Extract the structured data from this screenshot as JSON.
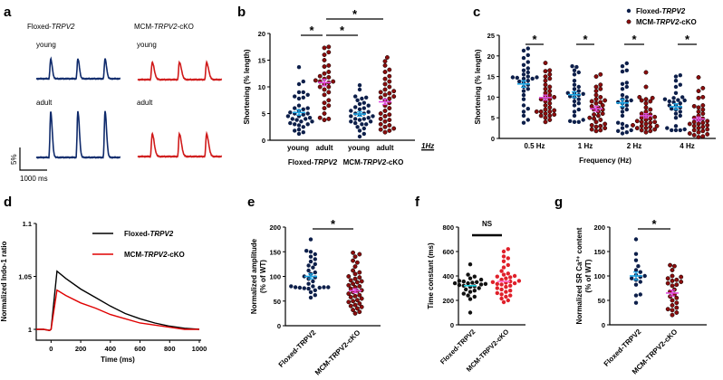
{
  "labels": {
    "floxed_prefix": "Floxed-",
    "gene": "TRPV2",
    "cko_prefix": "MCM-",
    "cko_suffix": "-cKO",
    "floxed_plain": "Floxed-TRPV2",
    "cko_plain": "MCM-TRPV2-cKO",
    "star": "*",
    "ns": "NS"
  },
  "colors": {
    "floxed_trace": "#0f2a6b",
    "cko_trace": "#d01a1a",
    "floxed_dot": "#0d1f4a",
    "cko_dot": "#8b0d0d",
    "floxed_mean": "#1fa8e6",
    "cko_mean": "#e24ce0",
    "f_floxed_dot": "#111111",
    "f_cko_dot": "#e0202a",
    "d_floxed": "#000000",
    "d_cko": "#e00000"
  },
  "panel_a": {
    "letter": "a",
    "young": "young",
    "adult": "adult",
    "scale_y": "5%",
    "scale_x": "1000 ms",
    "duration_ms": 3100,
    "beats_ms": [
      530,
      1530,
      2530
    ],
    "traces": [
      {
        "group": "floxed",
        "age": "young",
        "amplitude_percent": 4.4
      },
      {
        "group": "floxed",
        "age": "adult",
        "amplitude_percent": 10.2
      },
      {
        "group": "cko",
        "age": "young",
        "amplitude_percent": 3.8
      },
      {
        "group": "cko",
        "age": "adult",
        "amplitude_percent": 5.0
      }
    ]
  },
  "chart_data": [
    {
      "id": "b",
      "type": "scatter",
      "letter": "b",
      "ylabel": "Shortening (% length)",
      "ylim": [
        0,
        20
      ],
      "yticks": [
        0,
        5,
        10,
        15,
        20
      ],
      "frequency_label": "1Hz",
      "categories": [
        "young",
        "adult",
        "young",
        "adult"
      ],
      "group_labels": [
        "Floxed-TRPV2",
        "MCM-TRPV2-cKO"
      ],
      "series": [
        {
          "name": "Floxed-TRPV2 young",
          "mean": 5.2,
          "sem": 0.5,
          "values": [
            13.7,
            11,
            10.5,
            9,
            9,
            8.5,
            8.2,
            8,
            7.8,
            6.5,
            6,
            6,
            5.8,
            5.5,
            5.2,
            5,
            5,
            4.8,
            4.5,
            4.5,
            4.2,
            4,
            4,
            3.8,
            3.5,
            3.5,
            3.2,
            3,
            3,
            2.8,
            2.5,
            2,
            1.8,
            1.5,
            1.2
          ]
        },
        {
          "name": "Floxed-TRPV2 adult",
          "mean": 10.8,
          "sem": 0.6,
          "values": [
            17.5,
            17.3,
            16.5,
            16,
            15,
            14,
            13.8,
            12.8,
            12.5,
            12,
            11.8,
            11.5,
            11.2,
            11,
            11,
            10.8,
            10.5,
            10,
            10,
            9.5,
            9,
            8.5,
            7.5,
            7,
            6.5,
            6,
            5,
            4.2,
            4,
            3.8
          ]
        },
        {
          "name": "MCM-TRPV2-cKO young",
          "mean": 4.9,
          "sem": 0.4,
          "values": [
            10.3,
            9.5,
            8.2,
            8,
            7.8,
            7.5,
            7,
            6.8,
            6.5,
            6.2,
            6,
            5.8,
            5.5,
            5.3,
            5,
            5,
            4.8,
            4.5,
            4.5,
            4.2,
            4,
            4,
            3.8,
            3.5,
            3.5,
            3.2,
            3,
            3,
            2.5,
            2.2,
            1.8,
            1.2,
            0.7
          ]
        },
        {
          "name": "MCM-TRPV2-cKO adult",
          "mean": 7.2,
          "sem": 0.5,
          "values": [
            15.5,
            14.8,
            14,
            13.2,
            12.8,
            12,
            11.5,
            11,
            10.5,
            10,
            9.5,
            9.2,
            9,
            8.8,
            8.5,
            8.2,
            8,
            7.8,
            7.5,
            7,
            6.5,
            6,
            5.5,
            5,
            4.8,
            4.5,
            4,
            3.8,
            3.5,
            3,
            2.8,
            2.5,
            2.2,
            2,
            1.8,
            1.5
          ]
        }
      ],
      "significance": [
        {
          "pair": [
            0,
            1
          ],
          "label": "*"
        },
        {
          "pair": [
            1,
            2
          ],
          "label": "*"
        },
        {
          "pair": [
            1,
            3
          ],
          "label": "*"
        }
      ]
    },
    {
      "id": "c",
      "type": "scatter",
      "letter": "c",
      "ylabel": "Shortening  (% length)",
      "xlabel": "Frequency  (Hz)",
      "ylim": [
        0,
        25
      ],
      "yticks": [
        0,
        5,
        10,
        15,
        20,
        25
      ],
      "categories": [
        "0.5 Hz",
        "1 Hz",
        "2 Hz",
        "4 Hz"
      ],
      "legend": [
        "Floxed-TRPV2",
        "MCM-TRPV2-cKO"
      ],
      "legend_position": "top-right",
      "series": [
        {
          "name": "Floxed 0.5 Hz",
          "mean": 13.2,
          "sem": 0.8,
          "values": [
            21.8,
            21.3,
            20.2,
            19.5,
            18.5,
            17.8,
            17,
            16.5,
            16,
            15.5,
            15,
            14.8,
            14.8,
            14.7,
            14.5,
            14.5,
            14,
            13.8,
            13.5,
            13,
            12.5,
            12,
            11.5,
            10.5,
            9.5,
            8,
            7.2,
            6.5,
            5.5,
            4.5,
            3.8
          ]
        },
        {
          "name": "cKO 0.5 Hz",
          "mean": 9.9,
          "sem": 0.6,
          "values": [
            18.3,
            16.5,
            16.3,
            15.5,
            15,
            14.5,
            14,
            13,
            12.5,
            12,
            11.5,
            11,
            10.5,
            10,
            10,
            9.5,
            9.5,
            9,
            8.5,
            8,
            7.5,
            7,
            6.8,
            6.5,
            6.5,
            6.5,
            6,
            5.8,
            5.5,
            5.5,
            5,
            4.5,
            4
          ]
        },
        {
          "name": "Floxed 1 Hz",
          "mean": 10.6,
          "sem": 0.7,
          "values": [
            17.5,
            17.3,
            16.5,
            16,
            15.5,
            14,
            13,
            12.5,
            12,
            11.5,
            11,
            11,
            10.8,
            10.5,
            10.2,
            10,
            9.5,
            9,
            8.5,
            8,
            7,
            6.5,
            5.5,
            4.5,
            4.2,
            4,
            4
          ]
        },
        {
          "name": "cKO 1 Hz",
          "mean": 7.2,
          "sem": 0.6,
          "values": [
            15.5,
            15,
            13,
            12.5,
            12,
            11.5,
            10.5,
            10,
            9.5,
            9.2,
            9,
            8.8,
            8.5,
            8,
            7.8,
            7.5,
            7,
            7,
            6.5,
            6,
            5.8,
            5.5,
            5,
            4.8,
            4.5,
            4,
            3.5,
            3.2,
            3,
            2.8,
            2.5,
            2.2,
            2,
            1.8
          ]
        },
        {
          "name": "Floxed 2 Hz",
          "mean": 8.6,
          "sem": 0.9,
          "values": [
            18.2,
            17.5,
            16.5,
            16.2,
            13.5,
            13.2,
            12.5,
            12,
            10.5,
            10,
            9.5,
            9.2,
            9,
            8.8,
            8.5,
            8,
            7.5,
            7,
            6.5,
            5.5,
            3.8,
            3.5,
            3,
            2.5,
            2,
            1.8,
            1.5,
            1.2
          ]
        },
        {
          "name": "cKO 2 Hz",
          "mean": 5.5,
          "sem": 0.5,
          "values": [
            16,
            12.5,
            10,
            9.8,
            9.5,
            9.2,
            9,
            8.5,
            7.5,
            7,
            6.5,
            6,
            5.8,
            5.5,
            5.2,
            5,
            4.8,
            4.5,
            4.2,
            4,
            4,
            3.8,
            3.5,
            3.2,
            3,
            3,
            2.8,
            2.5,
            2.5,
            2.2,
            2,
            1.8,
            1.5
          ]
        },
        {
          "name": "Floxed 4 Hz",
          "mean": 7.7,
          "sem": 0.7,
          "values": [
            15.3,
            15,
            14,
            13,
            12.5,
            11,
            10,
            9.8,
            9.5,
            9.3,
            9.2,
            9,
            8.8,
            8.5,
            8,
            8,
            7.5,
            7.2,
            7,
            6.5,
            6,
            5.5,
            5,
            3,
            2.5,
            2.2,
            2,
            2,
            2
          ]
        },
        {
          "name": "cKO 4 Hz",
          "mean": 4.7,
          "sem": 0.5,
          "values": [
            14.8,
            12.2,
            11.5,
            10,
            9.8,
            8,
            7.8,
            7.5,
            7,
            6.5,
            6,
            5.5,
            5,
            4.8,
            4.5,
            4.2,
            4,
            3.8,
            3.5,
            3.5,
            3.2,
            3,
            2.8,
            2.5,
            2.2,
            2,
            1.8,
            1.5,
            1.2,
            1,
            0.8,
            0.5,
            0.3
          ]
        }
      ],
      "significance": [
        {
          "pair": [
            0,
            1
          ],
          "label": "*"
        },
        {
          "pair": [
            2,
            3
          ],
          "label": "*"
        },
        {
          "pair": [
            4,
            5
          ],
          "label": "*"
        },
        {
          "pair": [
            6,
            7
          ],
          "label": "*"
        }
      ]
    },
    {
      "id": "d",
      "type": "line",
      "letter": "d",
      "ylabel": "Normalized Indo-1 ratio",
      "xlabel": "Time (ms)",
      "xlim": [
        -100,
        1000
      ],
      "ylim": [
        0.995,
        1.1
      ],
      "xticks": [
        0,
        200,
        400,
        600,
        800,
        1000
      ],
      "yticks": [
        {
          "v": 1,
          "label": "1"
        },
        {
          "v": 1.05,
          "label": "1.05"
        },
        {
          "v": 1.1,
          "label": "1.1"
        }
      ],
      "legend_position": "top-right",
      "x": [
        -100,
        -50,
        -10,
        0,
        40,
        100,
        200,
        300,
        400,
        500,
        600,
        700,
        800,
        900,
        1000
      ],
      "series": [
        {
          "name": "Floxed-TRPV2",
          "values": [
            1.0,
            1.0,
            0.999,
            1.0,
            1.055,
            1.048,
            1.038,
            1.03,
            1.022,
            1.015,
            1.01,
            1.006,
            1.003,
            1.001,
            1.0
          ]
        },
        {
          "name": "MCM-TRPV2-cKO",
          "values": [
            1.0,
            1.0,
            0.999,
            1.0,
            1.037,
            1.032,
            1.025,
            1.02,
            1.014,
            1.01,
            1.006,
            1.004,
            1.002,
            1.0,
            1.0
          ]
        }
      ]
    },
    {
      "id": "e",
      "type": "scatter",
      "letter": "e",
      "ylabel": [
        "Normalized amplitude",
        "(% of WT)"
      ],
      "ylim": [
        0,
        200
      ],
      "yticks": [
        0,
        50,
        100,
        150,
        200
      ],
      "categories": [
        "Floxed-TRPV2",
        "MCM-TRPV2-cKO"
      ],
      "series": [
        {
          "name": "Floxed-TRPV2",
          "mean": 100,
          "sem": 5,
          "values": [
            175,
            152,
            150,
            145,
            140,
            135,
            130,
            125,
            122,
            118,
            112,
            108,
            105,
            100,
            98,
            95,
            90,
            85,
            80,
            80,
            78,
            78,
            78,
            77,
            77,
            76,
            75,
            72,
            68,
            62,
            57
          ]
        },
        {
          "name": "MCM-TRPV2-cKO",
          "mean": 71,
          "sem": 4,
          "values": [
            148,
            145,
            140,
            132,
            128,
            120,
            112,
            108,
            105,
            100,
            98,
            95,
            92,
            90,
            88,
            85,
            82,
            80,
            78,
            75,
            72,
            70,
            68,
            65,
            62,
            60,
            58,
            55,
            52,
            50,
            48,
            45,
            42,
            40,
            38,
            35,
            32,
            28,
            25
          ]
        }
      ],
      "significance": [
        {
          "pair": [
            0,
            1
          ],
          "label": "*"
        }
      ]
    },
    {
      "id": "f",
      "type": "scatter",
      "letter": "f",
      "ylabel": "Time constant (ms)",
      "ylim": [
        0,
        800
      ],
      "yticks": [
        0,
        200,
        400,
        600,
        800
      ],
      "categories": [
        "Floxed-TRPV2",
        "MCM-TRPV2-cKO"
      ],
      "series": [
        {
          "name": "Floxed-TRPV2",
          "mean": 320,
          "sem": 12,
          "values": [
            495,
            410,
            395,
            380,
            370,
            360,
            355,
            350,
            345,
            340,
            340,
            335,
            330,
            325,
            320,
            315,
            310,
            300,
            290,
            280,
            270,
            255,
            240,
            230,
            210,
            100
          ]
        },
        {
          "name": "MCM-TRPV2-cKO",
          "mean": 355,
          "sem": 14,
          "values": [
            620,
            600,
            560,
            545,
            520,
            490,
            470,
            440,
            420,
            410,
            400,
            395,
            390,
            380,
            370,
            360,
            355,
            350,
            345,
            340,
            335,
            330,
            320,
            310,
            300,
            290,
            280,
            270,
            260,
            250,
            240,
            230,
            215,
            200,
            185
          ]
        }
      ],
      "significance": [
        {
          "pair": [
            0,
            1
          ],
          "label": "NS"
        }
      ]
    },
    {
      "id": "g",
      "type": "scatter",
      "letter": "g",
      "ylabel": [
        "Normalized SR Ca²⁺ content",
        "(% of WT)"
      ],
      "ylim": [
        0,
        200
      ],
      "yticks": [
        0,
        50,
        100,
        150,
        200
      ],
      "categories": [
        "Floxed-TRPV2",
        "MCM-TRPV2-cKO"
      ],
      "series": [
        {
          "name": "Floxed-TRPV2",
          "mean": 100,
          "sem": 8,
          "values": [
            175,
            145,
            132,
            120,
            112,
            108,
            102,
            100,
            98,
            95,
            92,
            88,
            82,
            62,
            60,
            45
          ]
        },
        {
          "name": "MCM-TRPV2-cKO",
          "mean": 65,
          "sem": 6,
          "values": [
            122,
            120,
            112,
            100,
            98,
            95,
            92,
            90,
            88,
            85,
            82,
            80,
            72,
            68,
            62,
            58,
            55,
            50,
            45,
            40,
            35,
            32,
            30,
            25,
            20
          ]
        }
      ],
      "significance": [
        {
          "pair": [
            0,
            1
          ],
          "label": "*"
        }
      ]
    }
  ]
}
